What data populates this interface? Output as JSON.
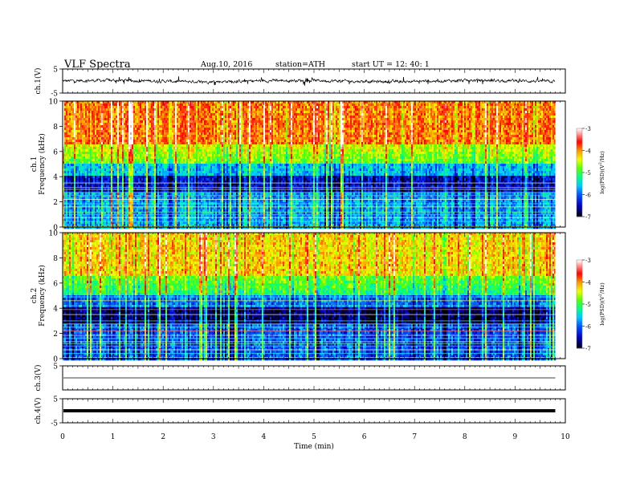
{
  "header": {
    "title": "VLF  Spectra",
    "date": "Aug.10, 2016",
    "station": "station=ATH",
    "start": "start  UT =   12: 40: 1"
  },
  "chart_data": [
    {
      "type": "line",
      "panel": "ch1-waveform",
      "ylabel": "ch.1(V)",
      "ylim": [
        -5,
        5
      ],
      "yticks": [
        5,
        -5
      ],
      "xlim": [
        0,
        10
      ],
      "x_data_end": 9.8,
      "color": "#000000",
      "description_series": "dense noisy waveform around 0 V, amplitude ~0.3 V with spikes to about ±1.5 V"
    },
    {
      "type": "heatmap",
      "panel": "ch1-spectrogram",
      "ylabel": "ch.1\nFrequency  (kHz)",
      "ylabel_lines": [
        "ch.1",
        "Frequency  (kHz)"
      ],
      "ylim": [
        0,
        10
      ],
      "yticks": [
        0,
        2,
        4,
        6,
        8,
        10
      ],
      "xlim": [
        0,
        10
      ],
      "x_data_end": 9.8,
      "colorbar": {
        "label": "log(PSD) (V²/Hz)",
        "label_text": "log(PSD)(V",
        "label_sup": "2",
        "label_end": "/Hz)",
        "range": [
          -7,
          -3
        ],
        "ticks": [
          -3,
          -4,
          -5,
          -6,
          -7
        ],
        "colors": [
          "#000000",
          "#0000d0",
          "#00c8ff",
          "#00ff80",
          "#f0ff00",
          "#ff0000",
          "#ffffff"
        ]
      },
      "lines_khz": [
        0.05,
        0.45,
        0.75,
        1.0,
        1.2,
        1.6,
        1.85,
        2.2,
        2.5,
        2.75,
        3.0,
        3.15,
        3.5
      ]
    },
    {
      "type": "heatmap",
      "panel": "ch2-spectrogram",
      "ylabel": "ch.2\nFrequency  (kHz)",
      "ylabel_lines": [
        "ch.2",
        "Frequency  (kHz)"
      ],
      "ylim": [
        0,
        10
      ],
      "yticks": [
        0,
        2,
        4,
        6,
        8,
        10
      ],
      "xlim": [
        0,
        10
      ],
      "x_data_end": 9.8,
      "colorbar": {
        "label": "log(PSD) (V²/Hz)",
        "label_text": "log(PSD)(V",
        "label_sup": "2",
        "label_end": "/Hz)",
        "range": [
          -7,
          -3
        ],
        "ticks": [
          -3,
          -4,
          -5,
          -6,
          -7
        ],
        "colors": [
          "#000000",
          "#0000d0",
          "#00c8ff",
          "#00ff80",
          "#f0ff00",
          "#ff0000",
          "#ffffff"
        ]
      },
      "lines_khz": [
        0.1,
        0.4,
        0.7,
        1.0,
        1.2,
        1.35,
        1.6,
        1.85,
        2.2,
        2.5,
        2.75,
        3.0,
        3.5,
        3.9,
        4.2,
        4.6,
        4.9
      ]
    },
    {
      "type": "line",
      "panel": "ch3-waveform",
      "ylabel": "ch.3(V)",
      "ylim": [
        -5,
        5
      ],
      "yticks": [
        5
      ],
      "xlim": [
        0,
        10
      ],
      "x_data_end": 9.8,
      "constant_value": 0,
      "color": "#000000"
    },
    {
      "type": "line",
      "panel": "ch4-waveform",
      "ylabel": "ch.4(V)",
      "ylim": [
        -5,
        5
      ],
      "yticks": [
        5,
        -5
      ],
      "xlim": [
        0,
        10
      ],
      "x_data_end": 9.8,
      "constant_value": 0,
      "color": "#000000"
    }
  ],
  "x_axis": {
    "label": "Time  (min)",
    "ticks": [
      0,
      1,
      2,
      3,
      4,
      5,
      6,
      7,
      8,
      9,
      10
    ]
  }
}
